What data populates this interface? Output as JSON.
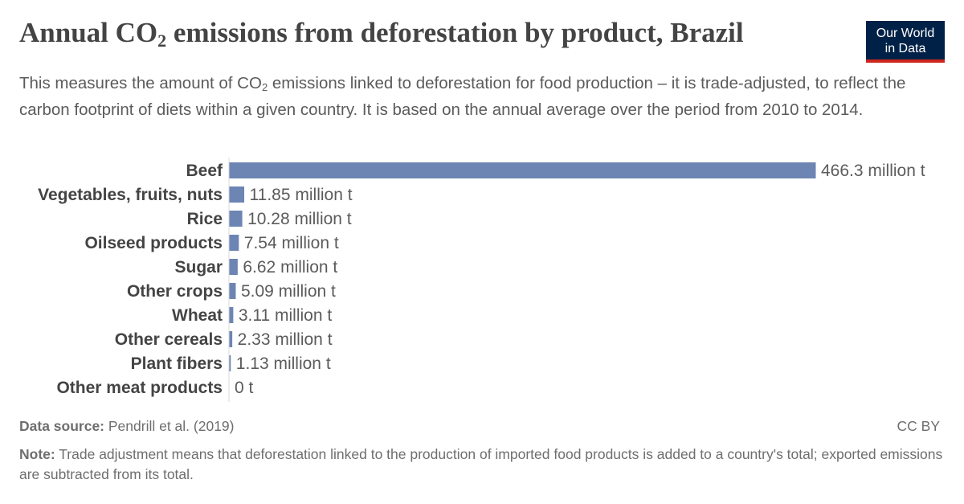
{
  "header": {
    "title_pre": "Annual CO",
    "title_sub": "2",
    "title_post": " emissions from deforestation by product, Brazil",
    "subtitle_pre": "This measures the amount of CO",
    "subtitle_sub": "2",
    "subtitle_post": " emissions linked to deforestation for food production – it is trade-adjusted, to reflect the carbon footprint of diets within a given country. It is based on the annual average over the period from 2010 to 2014."
  },
  "logo": {
    "line1": "Our World",
    "line2": "in Data"
  },
  "footer": {
    "source_label": "Data source:",
    "source_text": " Pendrill et al. (2019)",
    "license": "CC BY",
    "note_label": "Note:",
    "note_text": " Trade adjustment means that deforestation linked to the production of imported food products is added to a country's total; exported emissions are subtracted from its total."
  },
  "colors": {
    "bar": "#6d85b3",
    "axis": "#d9d9d9",
    "label": "#444444",
    "value": "#5b5b5b"
  },
  "chart_data": {
    "type": "bar",
    "orientation": "horizontal",
    "categories": [
      "Beef",
      "Vegetables, fruits, nuts",
      "Rice",
      "Oilseed products",
      "Sugar",
      "Other crops",
      "Wheat",
      "Other cereals",
      "Plant fibers",
      "Other meat products"
    ],
    "values": [
      466.3,
      11.85,
      10.28,
      7.54,
      6.62,
      5.09,
      3.11,
      2.33,
      1.13,
      0
    ],
    "value_labels": [
      "466.3 million t",
      "11.85 million t",
      "10.28 million t",
      "7.54 million t",
      "6.62 million t",
      "5.09 million t",
      "3.11 million t",
      "2.33 million t",
      "1.13 million t",
      "0 t"
    ],
    "unit": "million t",
    "xlim": [
      0,
      466.3
    ],
    "grid": false,
    "legend": "none"
  }
}
